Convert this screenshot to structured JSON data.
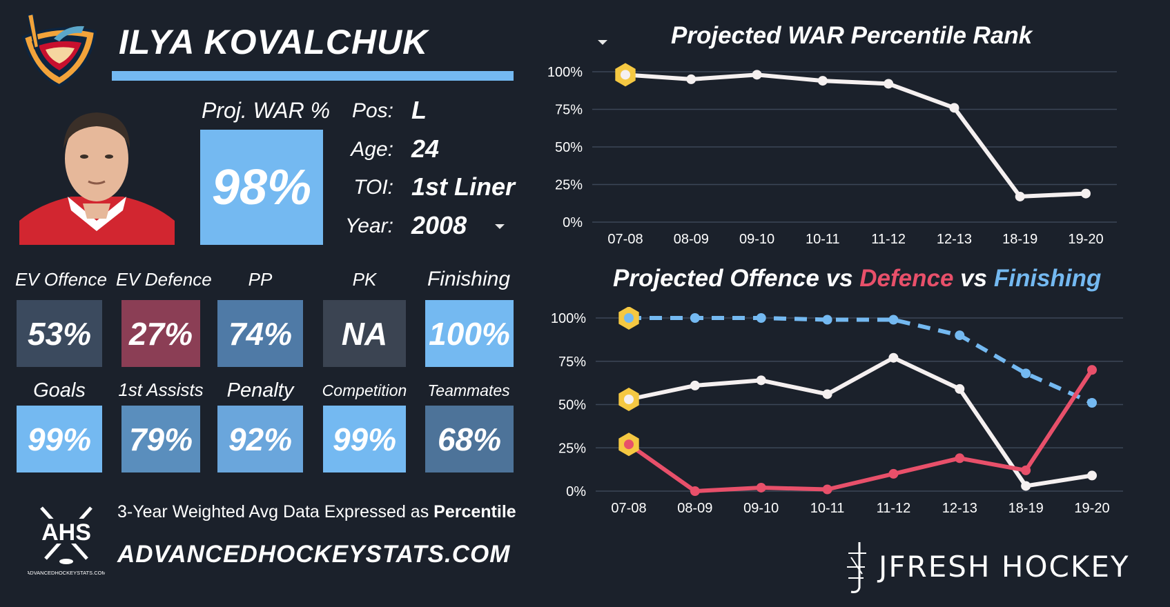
{
  "player": {
    "name": "ILYA KOVALCHUK",
    "proj_war_label": "Proj. WAR %",
    "proj_war_value": "98%",
    "info": [
      {
        "label": "Pos:",
        "value": "L"
      },
      {
        "label": "Age:",
        "value": "24"
      },
      {
        "label": "TOI:",
        "value": "1st Liner"
      },
      {
        "label": "Year:",
        "value": "2008"
      }
    ]
  },
  "tiles_row1": [
    {
      "label": "EV Offence",
      "value": "53%",
      "color": "#3b4a5e"
    },
    {
      "label": "EV Defence",
      "value": "27%",
      "color": "#8b3e55"
    },
    {
      "label": "PP",
      "value": "74%",
      "color": "#4f7aa6"
    },
    {
      "label": "PK",
      "value": "NA",
      "color": "#3b4452"
    },
    {
      "label": "Finishing",
      "value": "100%",
      "color": "#74b9f1"
    }
  ],
  "tiles_row2": [
    {
      "label": "Goals",
      "value": "99%",
      "color": "#74b9f1"
    },
    {
      "label": "1st Assists",
      "value": "79%",
      "color": "#5a8ebd"
    },
    {
      "label": "Penalty",
      "value": "92%",
      "color": "#6aa6dc"
    },
    {
      "label": "Competition",
      "value": "99%",
      "color": "#74b9f1"
    },
    {
      "label": "Teammates",
      "value": "68%",
      "color": "#4d7399"
    }
  ],
  "footer": {
    "text": "3-Year Weighted Avg Data Expressed as ",
    "text_bold": "Percentile",
    "site": "ADVANCEDHOCKEYSTATS.COM",
    "ahs_logo_text": "AHS",
    "ahs_logo_sub": "ADVANCEDHOCKEYSTATS.COM",
    "brand": "JFRESH HOCKEY"
  },
  "chart_data": [
    {
      "type": "line",
      "title": "Projected WAR Percentile Rank",
      "categories": [
        "07-08",
        "08-09",
        "09-10",
        "10-11",
        "11-12",
        "12-13",
        "18-19",
        "19-20"
      ],
      "yticks": [
        "0%",
        "25%",
        "50%",
        "75%",
        "100%"
      ],
      "ylim": [
        0,
        100
      ],
      "series": [
        {
          "values": [
            98,
            95,
            98,
            94,
            92,
            76,
            17,
            19
          ],
          "color": "#f5f0f0",
          "dashed": false
        }
      ],
      "highlight_index": 0
    },
    {
      "type": "line",
      "title_parts": [
        {
          "text": "Projected Offence vs ",
          "color": "#ffffff"
        },
        {
          "text": "Defence",
          "color": "#e8506a"
        },
        {
          "text": " vs ",
          "color": "#ffffff"
        },
        {
          "text": "Finishing",
          "color": "#74b9f1"
        }
      ],
      "categories": [
        "07-08",
        "08-09",
        "09-10",
        "10-11",
        "11-12",
        "12-13",
        "18-19",
        "19-20"
      ],
      "yticks": [
        "0%",
        "25%",
        "50%",
        "75%",
        "100%"
      ],
      "ylim": [
        0,
        100
      ],
      "series": [
        {
          "name": "Finishing",
          "values": [
            100,
            100,
            100,
            99,
            99,
            90,
            68,
            51
          ],
          "color": "#74b9f1",
          "dashed": true
        },
        {
          "name": "Offence",
          "values": [
            53,
            61,
            64,
            56,
            77,
            59,
            3,
            9
          ],
          "color": "#f5f0f0",
          "dashed": false
        },
        {
          "name": "Defence",
          "values": [
            27,
            0,
            2,
            1,
            10,
            19,
            12,
            70
          ],
          "color": "#e8506a",
          "dashed": false
        }
      ],
      "highlight_index": 0
    }
  ],
  "colors": {
    "background": "#1b212b",
    "accent": "#74b9f1",
    "highlight": "#f5c842"
  }
}
